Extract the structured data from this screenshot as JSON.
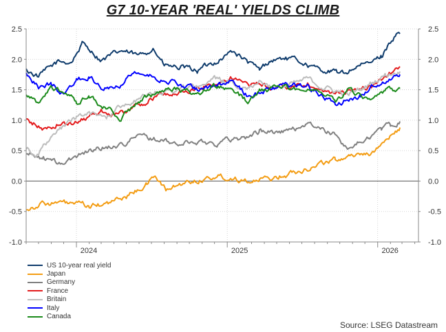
{
  "title": "G7 10-YEAR 'REAL' YIELDS CLIMB",
  "source": "Source: LSEG Datastream",
  "chart_data": {
    "type": "line",
    "title": "G7 10-YEAR 'REAL' YIELDS CLIMB",
    "xlabel": "",
    "ylabel": "",
    "x_range": [
      "2023-09-01",
      "2026-04-10"
    ],
    "x_data_end": "2026-02-24",
    "ylim": [
      -1.0,
      2.5
    ],
    "yticks": [
      -1.0,
      -0.5,
      0.0,
      0.5,
      1.0,
      1.5,
      2.0,
      2.5
    ],
    "ytick_labels": [
      "-1.0",
      "-0.5",
      "0.0",
      "0.5",
      "1.0",
      "1.5",
      "2.0",
      "2.5"
    ],
    "year_labels": [
      {
        "label": "2024",
        "date": "2024-01-31"
      },
      {
        "label": "2025",
        "date": "2025-01-31"
      },
      {
        "label": "2026",
        "date": "2026-01-31"
      }
    ],
    "year_boundaries": [
      "2024-01-01",
      "2025-01-01",
      "2026-01-01"
    ],
    "axes": "left and right axes, identical scale",
    "grid": true,
    "legend_position": "bottom-left, below plot",
    "series": [
      {
        "name": "US 10-year real yield",
        "color": "#0d3a6b",
        "points": [
          [
            "2023-09-01",
            1.82
          ],
          [
            "2023-10-01",
            1.72
          ],
          [
            "2023-11-15",
            1.95
          ],
          [
            "2023-12-20",
            1.96
          ],
          [
            "2024-01-15",
            2.25
          ],
          [
            "2024-02-01",
            2.18
          ],
          [
            "2024-03-01",
            1.98
          ],
          [
            "2024-04-20",
            2.14
          ],
          [
            "2024-06-01",
            2.05
          ],
          [
            "2024-07-05",
            2.19
          ],
          [
            "2024-08-01",
            1.9
          ],
          [
            "2024-09-10",
            1.85
          ],
          [
            "2024-10-20",
            1.82
          ],
          [
            "2024-12-01",
            1.95
          ],
          [
            "2025-01-15",
            2.14
          ],
          [
            "2025-02-20",
            1.95
          ],
          [
            "2025-03-20",
            1.82
          ],
          [
            "2025-04-15",
            1.98
          ],
          [
            "2025-05-20",
            2.02
          ],
          [
            "2025-07-01",
            1.96
          ],
          [
            "2025-08-01",
            1.85
          ],
          [
            "2025-09-10",
            1.8
          ],
          [
            "2025-10-10",
            1.76
          ],
          [
            "2025-11-10",
            1.88
          ],
          [
            "2025-12-10",
            1.92
          ],
          [
            "2026-01-10",
            2.05
          ],
          [
            "2026-02-01",
            2.3
          ],
          [
            "2026-02-15",
            2.4
          ],
          [
            "2026-02-24",
            2.42
          ]
        ]
      },
      {
        "name": "Japan",
        "color": "#f39c12",
        "points": [
          [
            "2023-09-01",
            -0.45
          ],
          [
            "2023-10-15",
            -0.36
          ],
          [
            "2023-12-20",
            -0.37
          ],
          [
            "2024-02-01",
            -0.42
          ],
          [
            "2024-03-15",
            -0.38
          ],
          [
            "2024-05-01",
            -0.25
          ],
          [
            "2024-06-20",
            -0.05
          ],
          [
            "2024-07-10",
            0.1
          ],
          [
            "2024-08-05",
            -0.15
          ],
          [
            "2024-09-10",
            -0.05
          ],
          [
            "2024-10-20",
            0.02
          ],
          [
            "2024-12-10",
            0.08
          ],
          [
            "2025-01-20",
            0.05
          ],
          [
            "2025-03-15",
            0.0
          ],
          [
            "2025-04-20",
            0.05
          ],
          [
            "2025-06-01",
            0.12
          ],
          [
            "2025-07-15",
            0.22
          ],
          [
            "2025-08-20",
            0.3
          ],
          [
            "2025-09-20",
            0.35
          ],
          [
            "2025-10-20",
            0.42
          ],
          [
            "2025-11-20",
            0.45
          ],
          [
            "2025-12-20",
            0.47
          ],
          [
            "2026-01-10",
            0.55
          ],
          [
            "2026-01-25",
            0.72
          ],
          [
            "2026-02-10",
            0.78
          ],
          [
            "2026-02-24",
            0.88
          ]
        ]
      },
      {
        "name": "Germany",
        "color": "#808080",
        "points": [
          [
            "2023-09-01",
            0.45
          ],
          [
            "2023-10-15",
            0.38
          ],
          [
            "2023-11-20",
            0.28
          ],
          [
            "2023-12-20",
            0.35
          ],
          [
            "2024-01-20",
            0.48
          ],
          [
            "2024-03-01",
            0.55
          ],
          [
            "2024-04-20",
            0.6
          ],
          [
            "2024-06-01",
            0.75
          ],
          [
            "2024-07-15",
            0.68
          ],
          [
            "2024-09-01",
            0.6
          ],
          [
            "2024-10-15",
            0.65
          ],
          [
            "2024-12-01",
            0.62
          ],
          [
            "2025-01-15",
            0.7
          ],
          [
            "2025-02-20",
            0.72
          ],
          [
            "2025-03-20",
            0.82
          ],
          [
            "2025-05-01",
            0.8
          ],
          [
            "2025-06-15",
            0.85
          ],
          [
            "2025-07-10",
            0.95
          ],
          [
            "2025-08-15",
            0.85
          ],
          [
            "2025-09-20",
            0.75
          ],
          [
            "2025-10-20",
            0.55
          ],
          [
            "2025-11-15",
            0.62
          ],
          [
            "2025-12-10",
            0.72
          ],
          [
            "2026-01-10",
            0.85
          ],
          [
            "2026-02-01",
            0.92
          ],
          [
            "2026-02-24",
            0.98
          ]
        ]
      },
      {
        "name": "France",
        "color": "#e31a1c",
        "points": [
          [
            "2023-09-01",
            1.0
          ],
          [
            "2023-10-15",
            0.85
          ],
          [
            "2023-11-20",
            0.95
          ],
          [
            "2023-12-20",
            0.92
          ],
          [
            "2024-01-20",
            1.05
          ],
          [
            "2024-03-01",
            1.15
          ],
          [
            "2024-04-15",
            1.1
          ],
          [
            "2024-06-01",
            1.25
          ],
          [
            "2024-07-15",
            1.4
          ],
          [
            "2024-09-01",
            1.45
          ],
          [
            "2024-10-15",
            1.5
          ],
          [
            "2024-12-01",
            1.6
          ],
          [
            "2025-01-15",
            1.7
          ],
          [
            "2025-02-20",
            1.55
          ],
          [
            "2025-03-20",
            1.6
          ],
          [
            "2025-05-01",
            1.52
          ],
          [
            "2025-06-15",
            1.58
          ],
          [
            "2025-07-15",
            1.62
          ],
          [
            "2025-08-20",
            1.5
          ],
          [
            "2025-09-20",
            1.42
          ],
          [
            "2025-10-20",
            1.48
          ],
          [
            "2025-11-20",
            1.52
          ],
          [
            "2025-12-20",
            1.55
          ],
          [
            "2026-01-20",
            1.72
          ],
          [
            "2026-02-24",
            1.88
          ]
        ]
      },
      {
        "name": "Britain",
        "color": "#bdbdbd",
        "points": [
          [
            "2023-09-01",
            0.55
          ],
          [
            "2023-10-01",
            0.45
          ],
          [
            "2023-11-01",
            0.7
          ],
          [
            "2023-12-01",
            0.9
          ],
          [
            "2024-01-01",
            1.05
          ],
          [
            "2024-02-01",
            1.1
          ],
          [
            "2024-03-15",
            1.05
          ],
          [
            "2024-04-20",
            1.25
          ],
          [
            "2024-06-01",
            1.35
          ],
          [
            "2024-07-15",
            1.45
          ],
          [
            "2024-09-01",
            1.5
          ],
          [
            "2024-10-15",
            1.55
          ],
          [
            "2024-12-01",
            1.68
          ],
          [
            "2025-01-15",
            1.6
          ],
          [
            "2025-02-20",
            1.55
          ],
          [
            "2025-03-20",
            1.65
          ],
          [
            "2025-05-01",
            1.52
          ],
          [
            "2025-06-15",
            1.6
          ],
          [
            "2025-07-15",
            1.68
          ],
          [
            "2025-08-20",
            1.55
          ],
          [
            "2025-09-20",
            1.48
          ],
          [
            "2025-10-20",
            1.42
          ],
          [
            "2025-11-20",
            1.5
          ],
          [
            "2025-12-20",
            1.62
          ],
          [
            "2026-01-20",
            1.75
          ],
          [
            "2026-02-24",
            1.8
          ]
        ]
      },
      {
        "name": "Italy",
        "color": "#0000ff",
        "points": [
          [
            "2023-09-01",
            1.78
          ],
          [
            "2023-10-01",
            1.55
          ],
          [
            "2023-11-01",
            1.6
          ],
          [
            "2023-12-01",
            1.42
          ],
          [
            "2024-01-01",
            1.65
          ],
          [
            "2024-02-01",
            1.72
          ],
          [
            "2024-03-01",
            1.55
          ],
          [
            "2024-04-15",
            1.6
          ],
          [
            "2024-05-15",
            1.8
          ],
          [
            "2024-06-15",
            1.75
          ],
          [
            "2024-07-15",
            1.7
          ],
          [
            "2024-09-01",
            1.6
          ],
          [
            "2024-10-15",
            1.5
          ],
          [
            "2024-12-01",
            1.55
          ],
          [
            "2025-01-15",
            1.62
          ],
          [
            "2025-02-20",
            1.4
          ],
          [
            "2025-03-20",
            1.45
          ],
          [
            "2025-05-01",
            1.55
          ],
          [
            "2025-06-15",
            1.6
          ],
          [
            "2025-07-15",
            1.55
          ],
          [
            "2025-08-20",
            1.4
          ],
          [
            "2025-09-20",
            1.25
          ],
          [
            "2025-10-20",
            1.35
          ],
          [
            "2025-11-20",
            1.4
          ],
          [
            "2025-12-20",
            1.55
          ],
          [
            "2026-01-20",
            1.65
          ],
          [
            "2026-02-24",
            1.75
          ]
        ]
      },
      {
        "name": "Canada",
        "color": "#1a8a1a",
        "points": [
          [
            "2023-09-01",
            1.4
          ],
          [
            "2023-10-01",
            1.25
          ],
          [
            "2023-11-01",
            1.55
          ],
          [
            "2023-12-01",
            1.45
          ],
          [
            "2024-01-01",
            1.3
          ],
          [
            "2024-02-01",
            1.4
          ],
          [
            "2024-03-01",
            1.25
          ],
          [
            "2024-04-15",
            1.05
          ],
          [
            "2024-05-15",
            1.2
          ],
          [
            "2024-06-15",
            1.35
          ],
          [
            "2024-07-15",
            1.45
          ],
          [
            "2024-09-01",
            1.5
          ],
          [
            "2024-10-15",
            1.42
          ],
          [
            "2024-12-01",
            1.55
          ],
          [
            "2025-01-15",
            1.5
          ],
          [
            "2025-02-20",
            1.3
          ],
          [
            "2025-03-20",
            1.45
          ],
          [
            "2025-05-01",
            1.55
          ],
          [
            "2025-06-15",
            1.5
          ],
          [
            "2025-07-15",
            1.55
          ],
          [
            "2025-08-20",
            1.45
          ],
          [
            "2025-09-20",
            1.35
          ],
          [
            "2025-10-20",
            1.48
          ],
          [
            "2025-11-20",
            1.42
          ],
          [
            "2025-12-20",
            1.3
          ],
          [
            "2026-01-20",
            1.45
          ],
          [
            "2026-02-24",
            1.52
          ]
        ]
      }
    ]
  }
}
